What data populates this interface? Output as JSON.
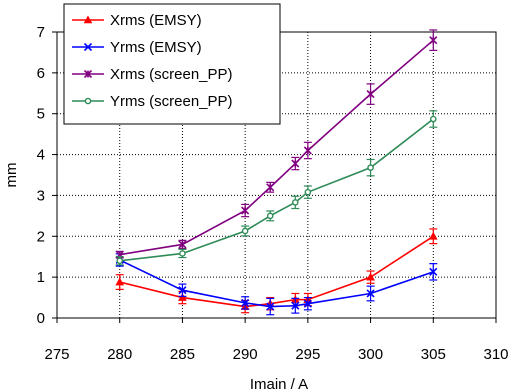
{
  "chart_data": {
    "type": "line",
    "xlabel": "Imain / A",
    "ylabel": "mm",
    "xlim": [
      275,
      310
    ],
    "ylim": [
      0,
      7
    ],
    "xticks": [
      275,
      280,
      285,
      290,
      295,
      300,
      305,
      310
    ],
    "yticks": [
      0,
      1,
      2,
      3,
      4,
      5,
      6,
      7
    ],
    "grid": true,
    "legend_position": "top-left",
    "series": [
      {
        "name": "Xrms (EMSY)",
        "color": "#ff0000",
        "marker": "triangle",
        "x": [
          280,
          285,
          290,
          292,
          294,
          295,
          300,
          305
        ],
        "y": [
          0.88,
          0.5,
          0.28,
          0.35,
          0.45,
          0.45,
          1.0,
          2.0
        ],
        "err": [
          0.18,
          0.15,
          0.15,
          0.15,
          0.15,
          0.15,
          0.15,
          0.18
        ]
      },
      {
        "name": "Yrms (EMSY)",
        "color": "#0000ff",
        "marker": "x",
        "x": [
          280,
          285,
          290,
          292,
          294,
          295,
          300,
          305
        ],
        "y": [
          1.42,
          0.68,
          0.37,
          0.28,
          0.3,
          0.35,
          0.6,
          1.13
        ],
        "err": [
          0.15,
          0.15,
          0.15,
          0.2,
          0.18,
          0.15,
          0.18,
          0.2
        ]
      },
      {
        "name": "Xrms (screen_PP)",
        "color": "#800080",
        "marker": "star",
        "x": [
          280,
          285,
          290,
          292,
          294,
          295,
          300,
          305
        ],
        "y": [
          1.55,
          1.8,
          2.63,
          3.2,
          3.78,
          4.1,
          5.48,
          6.8
        ],
        "err": [
          0.08,
          0.1,
          0.15,
          0.12,
          0.15,
          0.2,
          0.25,
          0.25
        ]
      },
      {
        "name": "Yrms (screen_PP)",
        "color": "#2e8b57",
        "marker": "circle",
        "x": [
          280,
          285,
          290,
          292,
          294,
          295,
          300,
          305
        ],
        "y": [
          1.4,
          1.58,
          2.13,
          2.5,
          2.83,
          3.08,
          3.68,
          4.87
        ],
        "err": [
          0.1,
          0.1,
          0.12,
          0.12,
          0.15,
          0.15,
          0.2,
          0.2
        ]
      }
    ]
  }
}
